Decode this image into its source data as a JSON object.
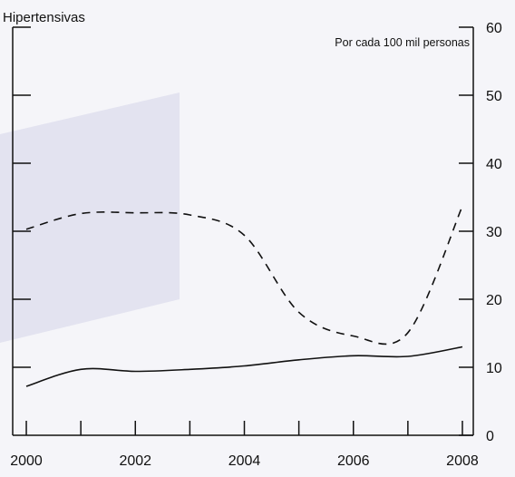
{
  "chart_data": {
    "type": "line",
    "title": "Hipertensivas",
    "ylabel": "Por cada 100 mil personas",
    "xlabel": "",
    "x_ticks": [
      "2000",
      "2002",
      "2004",
      "2006",
      "2008"
    ],
    "y_ticks": [
      "0",
      "10",
      "20",
      "30",
      "40",
      "50",
      "60"
    ],
    "ylim": [
      0,
      60
    ],
    "xlim": [
      1999.75,
      2008.2
    ],
    "grid": false,
    "y_axis_side": "right",
    "series": [
      {
        "style": "dashed",
        "x": [
          2000,
          2001,
          2002,
          2003,
          2004,
          2005,
          2006,
          2007,
          2008
        ],
        "values": [
          30.3,
          32.6,
          32.7,
          32.4,
          29.4,
          18.1,
          14.6,
          15.1,
          33.7
        ]
      },
      {
        "style": "solid",
        "x": [
          2000,
          2001,
          2002,
          2003,
          2004,
          2005,
          2006,
          2007,
          2008
        ],
        "values": [
          7.2,
          9.7,
          9.4,
          9.7,
          10.2,
          11.1,
          11.7,
          11.6,
          13.0
        ]
      }
    ],
    "shaded_band": {
      "color": "#e3e3f0"
    }
  }
}
